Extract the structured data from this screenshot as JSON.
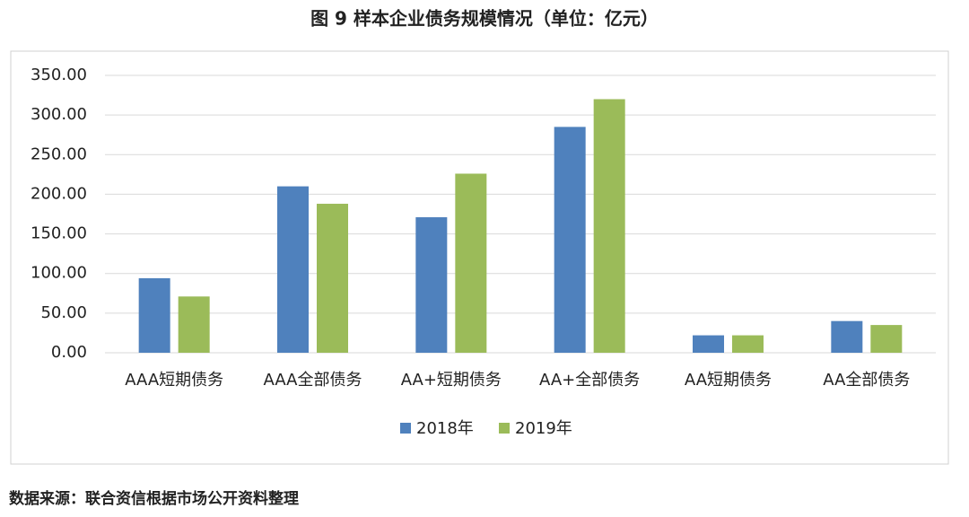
{
  "chart_data": {
    "type": "bar",
    "title": "图 9  样本企业债务规模情况（单位：亿元）",
    "categories": [
      "AAA短期债务",
      "AAA全部债务",
      "AA+短期债务",
      "AA+全部债务",
      "AA短期债务",
      "AA全部债务"
    ],
    "series": [
      {
        "name": "2018年",
        "color": "#4f81bd",
        "values": [
          94,
          210,
          171,
          285,
          22,
          40
        ]
      },
      {
        "name": "2019年",
        "color": "#9bbb59",
        "values": [
          71,
          188,
          226,
          320,
          22,
          35
        ]
      }
    ],
    "ylim": [
      0,
      350
    ],
    "yticks": [
      {
        "value": 0,
        "label": "0.00"
      },
      {
        "value": 50,
        "label": "50.00"
      },
      {
        "value": 100,
        "label": "100.00"
      },
      {
        "value": 150,
        "label": "150.00"
      },
      {
        "value": 200,
        "label": "200.00"
      },
      {
        "value": 250,
        "label": "250.00"
      },
      {
        "value": 300,
        "label": "300.00"
      },
      {
        "value": 350,
        "label": "350.00"
      }
    ],
    "grid": true,
    "legend": "bottom",
    "source": "数据来源：联合资信根据市场公开资料整理"
  }
}
